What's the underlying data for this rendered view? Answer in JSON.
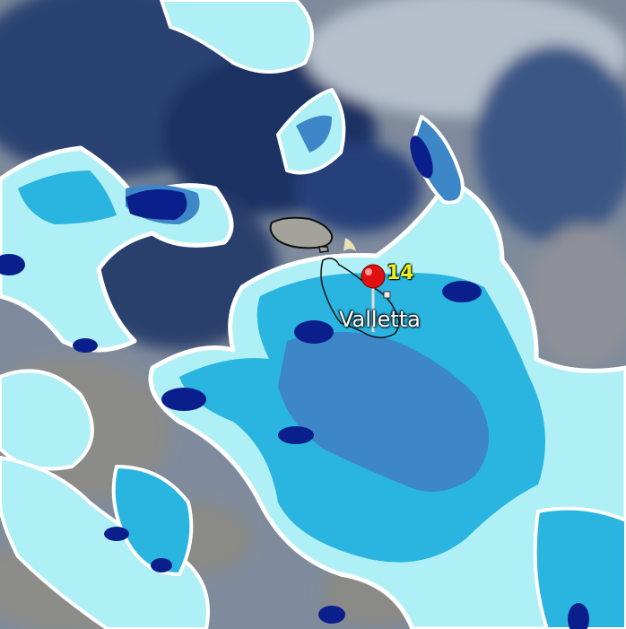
{
  "map": {
    "type": "weather radar precipitation overlay",
    "location": {
      "name": "Valletta",
      "value": "14",
      "marker_icon": "red-pushpin-icon"
    },
    "colors": {
      "cloud_dark": "#1f3766",
      "cloud_light": "#8f9cb0",
      "land": "#8a8a86",
      "precip_light": "#aef0f6",
      "precip_mid": "#2ab4e0",
      "precip_heavy": "#3d86c8",
      "precip_core": "#0b1f8c",
      "marker": "#e01010",
      "value_text": "#e6f01e"
    }
  }
}
